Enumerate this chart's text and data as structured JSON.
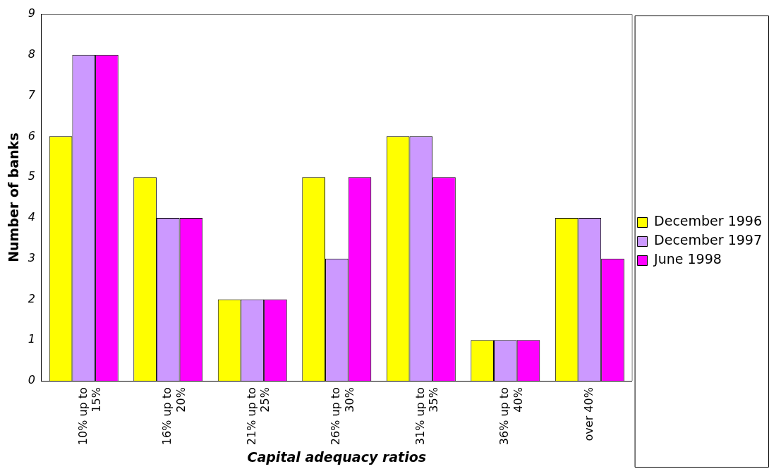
{
  "chart_data": {
    "type": "bar",
    "xlabel": "Capital adequacy ratios",
    "ylabel": "Number of banks",
    "categories": [
      "10% up to 15%",
      "16% up to 20%",
      "21% up to 25%",
      "26% up to 30%",
      "31% up to 35%",
      "36% up to 40%",
      "over 40%"
    ],
    "series": [
      {
        "name": "December 1996",
        "color": "#ffff00",
        "values": [
          6,
          5,
          2,
          5,
          6,
          1,
          4
        ]
      },
      {
        "name": "December 1997",
        "color": "#cc99ff",
        "values": [
          8,
          4,
          2,
          3,
          6,
          1,
          4
        ]
      },
      {
        "name": "June 1998",
        "color": "#ff00ff",
        "values": [
          8,
          4,
          2,
          5,
          5,
          1,
          3
        ]
      }
    ],
    "ylim": [
      0,
      9
    ],
    "yticks": [
      0,
      1,
      2,
      3,
      4,
      5,
      6,
      7,
      8,
      9
    ],
    "grid": false,
    "legend": "right"
  }
}
